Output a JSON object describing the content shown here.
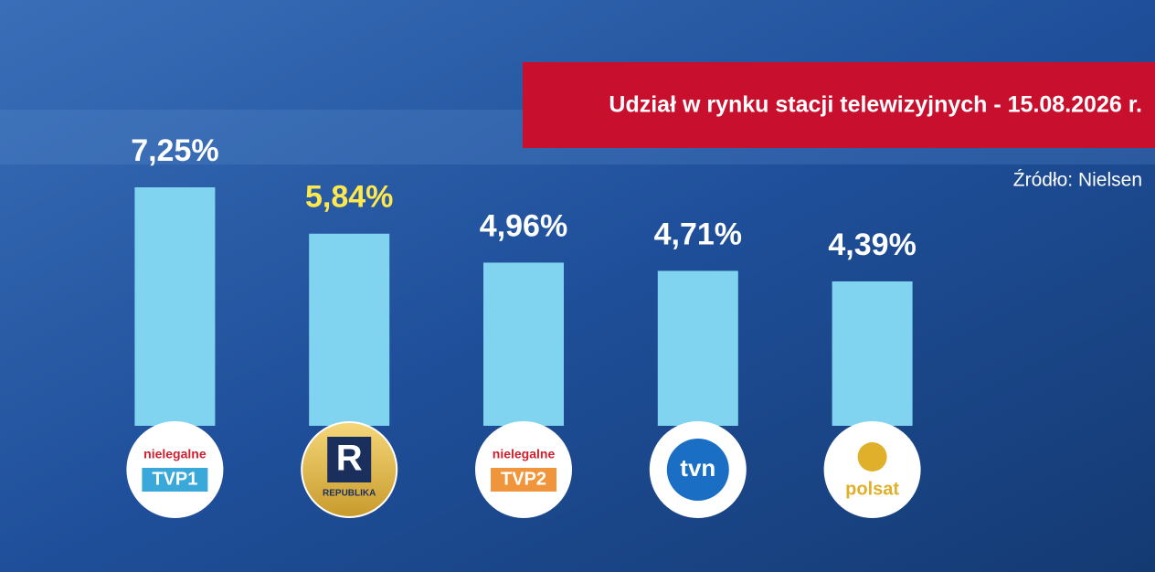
{
  "chart_data": {
    "type": "bar",
    "title": "Udział w rynku stacji telewizyjnych - 15.08.2026 r.",
    "source": "Źródło: Nielsen",
    "categories": [
      "TVP1",
      "REPUBLIKA",
      "TVP2",
      "tvn",
      "polsat"
    ],
    "badges": [
      "nielegalne",
      null,
      "nielegalne",
      null,
      null
    ],
    "values": [
      7.25,
      5.84,
      4.96,
      4.71,
      4.39
    ],
    "value_labels": [
      "7,25%",
      "5,84%",
      "4,96%",
      "4,71%",
      "4,39%"
    ],
    "label_colors": [
      "#ffffff",
      "#ffe94d",
      "#ffffff",
      "#ffffff",
      "#ffffff"
    ],
    "color": "#80d4ef",
    "ylim": [
      0,
      10
    ]
  }
}
